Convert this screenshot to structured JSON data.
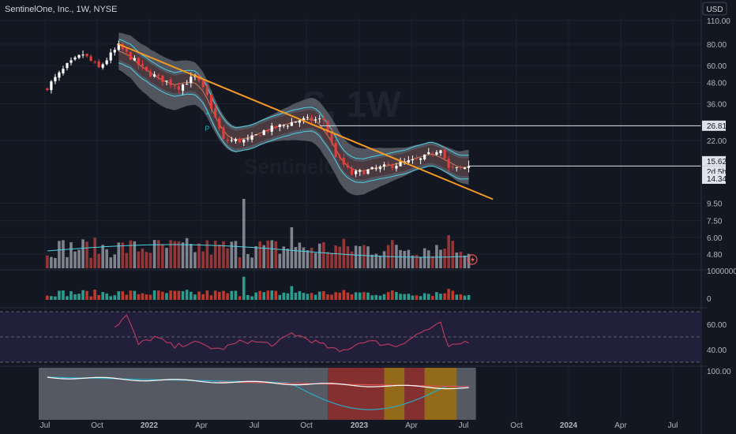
{
  "header": {
    "title": "SentinelOne, Inc., 1W, NYSE",
    "currency": "USD"
  },
  "watermark": {
    "symbol": "S, 1W",
    "name": "SentinelOne"
  },
  "colors": {
    "background": "#131722",
    "grid": "#1e222d",
    "axis_text": "#b2b5be",
    "up": "#ffffff",
    "down": "#e03e3e",
    "trendline": "#f59a23",
    "band": "#4dd0e1",
    "cloud": "#5d606b",
    "hline": "#e0e3eb",
    "rsi_line": "#b33a5e",
    "rsi_fill": "#211f3a",
    "osc_fill": "#5d606b",
    "osc_red": "#8a2a2a",
    "osc_orange": "#9a6b12",
    "osc_cyan": "#2aa8c4"
  },
  "chart_data": [
    {
      "type": "candlestick",
      "panel": "price",
      "scale": "log",
      "x_ticks": [
        "Jul",
        "Oct",
        "2022",
        "Apr",
        "Jul",
        "Oct",
        "2023",
        "Apr",
        "Jul",
        "Oct",
        "2024",
        "Apr",
        "Jul"
      ],
      "y_ticks": [
        110.0,
        80.0,
        60.0,
        48.0,
        36.0,
        22.0,
        9.5,
        7.5,
        6.0,
        4.8
      ],
      "y_tick_labels": [
        "110.00",
        "80.00",
        "60.00",
        "48.00",
        "36.00",
        "22.00",
        "9.50",
        "7.50",
        "6.00",
        "4.80"
      ],
      "ylim": [
        4.3,
        115
      ],
      "markers": [
        {
          "price": 26.81,
          "label": "26.81",
          "style": "horizontal-line"
        },
        {
          "price": 15.62,
          "label": "15.62",
          "style": "last-price-line"
        },
        {
          "price": 14.34,
          "label": "14.34",
          "style": "price-tag"
        }
      ],
      "countdown": "2d 5h",
      "annotations": [
        {
          "text": "P",
          "date": "2022-04-11"
        }
      ],
      "trendline": {
        "from": {
          "date": "2021-11-08",
          "price": 80.0
        },
        "to": {
          "date": "2023-08-21",
          "price": 10.0
        }
      },
      "series": [
        {
          "name": "",
          "keyframes": [
            [
              "2021-07-05",
              45
            ],
            [
              "2021-08-09",
              60
            ],
            [
              "2021-09-06",
              70
            ],
            [
              "2021-10-04",
              58
            ],
            [
              "2021-11-08",
              78
            ],
            [
              "2021-12-27",
              55
            ],
            [
              "2022-02-21",
              45
            ],
            [
              "2022-03-21",
              52
            ],
            [
              "2022-04-11",
              40
            ],
            [
              "2022-05-09",
              22
            ],
            [
              "2022-06-20",
              22
            ],
            [
              "2022-07-18",
              25
            ],
            [
              "2022-08-22",
              27
            ],
            [
              "2022-09-19",
              29
            ],
            [
              "2022-10-31",
              29
            ],
            [
              "2022-11-21",
              18
            ],
            [
              "2022-12-19",
              14
            ],
            [
              "2023-01-30",
              15
            ],
            [
              "2023-03-06",
              16
            ],
            [
              "2023-04-17",
              17
            ],
            [
              "2023-05-22",
              20
            ],
            [
              "2023-06-05",
              15
            ],
            [
              "2023-06-26",
              15
            ],
            [
              "2023-07-10",
              15.62
            ]
          ]
        }
      ]
    },
    {
      "type": "bar",
      "panel": "volume",
      "y_tick_labels": [
        "1000000",
        "0"
      ],
      "spikes": [
        {
          "date": "2022-06-13",
          "value": 880000
        },
        {
          "date": "2022-09-05",
          "value": 520000
        },
        {
          "date": "2023-06-05",
          "value": 420000
        }
      ],
      "baseline": 260000
    },
    {
      "type": "line",
      "panel": "rsi",
      "y_ticks": [
        60.0,
        40.0
      ],
      "y_tick_labels": [
        "60.00",
        "40.00"
      ],
      "keyframes": [
        [
          "2021-11-01",
          58
        ],
        [
          "2021-11-22",
          67
        ],
        [
          "2021-12-13",
          44
        ],
        [
          "2022-01-10",
          50
        ],
        [
          "2022-02-14",
          42
        ],
        [
          "2022-03-14",
          46
        ],
        [
          "2022-05-02",
          40
        ],
        [
          "2022-06-13",
          47
        ],
        [
          "2022-08-08",
          44
        ],
        [
          "2022-09-05",
          53
        ],
        [
          "2022-10-17",
          46
        ],
        [
          "2022-11-28",
          38
        ],
        [
          "2023-01-09",
          47
        ],
        [
          "2023-03-06",
          43
        ],
        [
          "2023-04-24",
          55
        ],
        [
          "2023-05-22",
          60
        ],
        [
          "2023-06-05",
          41
        ],
        [
          "2023-06-26",
          45
        ],
        [
          "2023-07-10",
          47
        ]
      ]
    },
    {
      "type": "line",
      "panel": "oscillator",
      "y_ticks": [
        100.0
      ],
      "y_tick_labels": [
        "100.00"
      ],
      "zones": [
        {
          "from": "2022-11-07",
          "to": "2023-02-13",
          "color": "red"
        },
        {
          "from": "2023-02-13",
          "to": "2023-03-20",
          "color": "orange"
        },
        {
          "from": "2023-03-20",
          "to": "2023-04-24",
          "color": "red"
        },
        {
          "from": "2023-04-24",
          "to": "2023-06-19",
          "color": "orange"
        }
      ]
    }
  ]
}
